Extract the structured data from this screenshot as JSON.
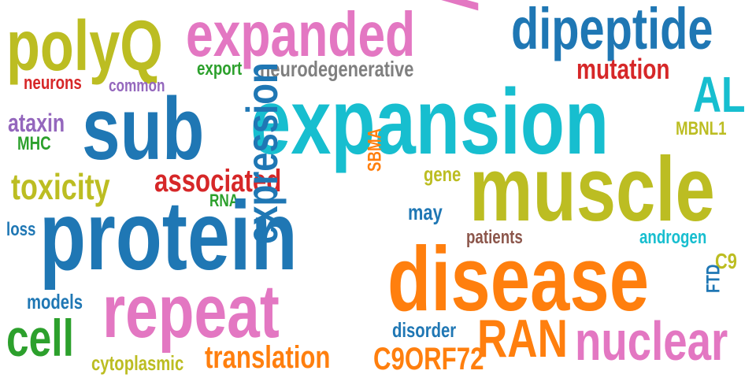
{
  "palette": {
    "olive": "#bcbd22",
    "pink": "#e377c2",
    "blue": "#1f77b4",
    "cyan": "#17becf",
    "orange": "#ff7f0e",
    "red": "#d62728",
    "green": "#2ca02c",
    "purple": "#9467bd",
    "gray": "#7f7f7f",
    "brown": "#8c564b"
  },
  "words": {
    "polyq": "polyQ",
    "expanded": "expanded",
    "ar": "AR",
    "dipeptide": "dipeptide",
    "neurons": "neurons",
    "common": "common",
    "export": "export",
    "neurodegenerative": "neurodegenerative",
    "mutation": "mutation",
    "al": "AL",
    "sub": "sub",
    "expansion": "expansion",
    "ataxin": "ataxin",
    "mhc": "MHC",
    "mbnl1": "MBNL1",
    "toxicity": "toxicity",
    "associated": "associated",
    "rna": "RNA",
    "gene": "gene",
    "muscle": "muscle",
    "sbma": "SBMA",
    "may": "may",
    "loss": "loss",
    "protein": "protein",
    "expression": "expression",
    "patients": "patients",
    "androgen": "androgen",
    "c9": "C9",
    "disease": "disease",
    "models": "models",
    "repeat": "repeat",
    "ftd": "FTD",
    "cell": "cell",
    "disorder": "disorder",
    "ran": "RAN",
    "nuclear": "nuclear",
    "cytoplasmic": "cytoplasmic",
    "translation": "translation",
    "c9orf72": "C9ORF72"
  }
}
